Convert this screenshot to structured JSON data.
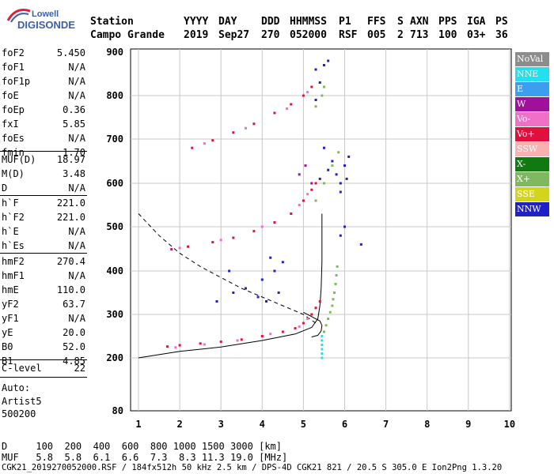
{
  "logo": {
    "line1": "Lowell",
    "line2": "DIGISONDE"
  },
  "header": {
    "row1": [
      "Station",
      "YYYY",
      "DAY",
      "DDD",
      "HHMMSS",
      "P1",
      "FFS",
      "S",
      "AXN",
      "PPS",
      "IGA",
      "PS"
    ],
    "row2": [
      "Campo Grande",
      "2019",
      "Sep27",
      "270",
      "052000",
      "RSF",
      "005",
      "2",
      "713",
      "100",
      "03+",
      "36"
    ]
  },
  "params": {
    "group1": [
      {
        "name": "foF2",
        "value": "5.450"
      },
      {
        "name": "foF1",
        "value": "N/A"
      },
      {
        "name": "foF1p",
        "value": "N/A"
      },
      {
        "name": "foE",
        "value": "N/A"
      },
      {
        "name": "foEp",
        "value": "0.36"
      },
      {
        "name": "fxI",
        "value": "5.85"
      },
      {
        "name": "foEs",
        "value": "N/A"
      },
      {
        "name": "fmin",
        "value": "1.70"
      }
    ],
    "group2": [
      {
        "name": "MUF(D)",
        "value": "18.97"
      },
      {
        "name": "M(D)",
        "value": "3.48"
      },
      {
        "name": "D",
        "value": "N/A"
      }
    ],
    "group3": [
      {
        "name": "h`F",
        "value": "221.0"
      },
      {
        "name": "h`F2",
        "value": "221.0"
      },
      {
        "name": "h`E",
        "value": "N/A"
      },
      {
        "name": "h`Es",
        "value": "N/A"
      }
    ],
    "group4": [
      {
        "name": "hmF2",
        "value": "270.4"
      },
      {
        "name": "hmF1",
        "value": "N/A"
      },
      {
        "name": "hmE",
        "value": "110.0"
      },
      {
        "name": "yF2",
        "value": "63.7"
      },
      {
        "name": "yF1",
        "value": "N/A"
      },
      {
        "name": "yE",
        "value": "20.0"
      },
      {
        "name": "B0",
        "value": "52.0"
      },
      {
        "name": "B1",
        "value": "4.85"
      }
    ],
    "group5": [
      {
        "name": "C-level",
        "value": "22"
      }
    ]
  },
  "auto": {
    "line1": "Auto:",
    "line2": "Artist5",
    "line3": "500200"
  },
  "legend": [
    {
      "label": "NoVal",
      "color": "#8c8c8c"
    },
    {
      "label": "NNE",
      "color": "#22e0f0"
    },
    {
      "label": "E",
      "color": "#3d9ef0"
    },
    {
      "label": "W",
      "color": "#a0109a"
    },
    {
      "label": "Vo-",
      "color": "#f070c8"
    },
    {
      "label": "Vo+",
      "color": "#e0103c"
    },
    {
      "label": "SSW",
      "color": "#f8b0b0"
    },
    {
      "label": "X-",
      "color": "#107a10"
    },
    {
      "label": "X+",
      "color": "#80b860"
    },
    {
      "label": "SSE",
      "color": "#d4d41a"
    },
    {
      "label": "NNW",
      "color": "#2020c8"
    }
  ],
  "bottom": {
    "d_row": "D     100  200  400  600  800 1000 1500 3000 [km]",
    "muf_row": "MUF   5.8  5.8  6.1  6.6  7.3  8.3 11.3 19.0 [MHz]",
    "footer": "CGK21_2019270052000.RSF / 184fx512h 50 kHz 2.5 km / DPS-4D CGK21 821 / 20.5 S 305.0 E Ion2Png 1.3.20"
  },
  "chart_data": {
    "type": "scatter",
    "xlim": [
      1,
      10
    ],
    "ylim": [
      80,
      900
    ],
    "xticks": [
      "1",
      "2",
      "3",
      "4",
      "5",
      "6",
      "7",
      "8",
      "9",
      "10"
    ],
    "yticks": [
      "80",
      "200",
      "300",
      "400",
      "500",
      "600",
      "700",
      "800",
      "900"
    ],
    "grid": true,
    "legend_position": "right",
    "series": [
      {
        "name": "Vo+",
        "color": "#e0103c",
        "points": [
          [
            1.7,
            226
          ],
          [
            2.0,
            229
          ],
          [
            2.5,
            233
          ],
          [
            3.0,
            237
          ],
          [
            3.5,
            242
          ],
          [
            4.0,
            250
          ],
          [
            4.5,
            260
          ],
          [
            4.8,
            268
          ],
          [
            5.0,
            280
          ],
          [
            5.2,
            300
          ],
          [
            5.3,
            315
          ],
          [
            5.4,
            330
          ],
          [
            1.8,
            449
          ],
          [
            2.2,
            455
          ],
          [
            2.8,
            465
          ],
          [
            3.3,
            475
          ],
          [
            3.8,
            490
          ],
          [
            4.3,
            510
          ],
          [
            4.7,
            530
          ],
          [
            5.0,
            560
          ],
          [
            5.2,
            585
          ],
          [
            5.3,
            600
          ],
          [
            2.3,
            680
          ],
          [
            2.8,
            697
          ],
          [
            3.3,
            715
          ],
          [
            3.8,
            735
          ],
          [
            4.3,
            760
          ],
          [
            4.7,
            780
          ],
          [
            5.0,
            800
          ],
          [
            5.2,
            820
          ]
        ]
      },
      {
        "name": "Vo-",
        "color": "#f070c8",
        "points": [
          [
            1.9,
            224
          ],
          [
            2.6,
            231
          ],
          [
            3.4,
            240
          ],
          [
            4.2,
            255
          ],
          [
            4.9,
            272
          ],
          [
            5.1,
            290
          ],
          [
            2.0,
            452
          ],
          [
            3.0,
            470
          ],
          [
            4.0,
            500
          ],
          [
            4.9,
            550
          ],
          [
            5.1,
            575
          ],
          [
            2.6,
            690
          ],
          [
            3.6,
            725
          ],
          [
            4.6,
            770
          ],
          [
            5.1,
            808
          ]
        ]
      },
      {
        "name": "X+",
        "color": "#80b860",
        "points": [
          [
            5.5,
            260
          ],
          [
            5.55,
            275
          ],
          [
            5.6,
            290
          ],
          [
            5.65,
            305
          ],
          [
            5.7,
            320
          ],
          [
            5.72,
            335
          ],
          [
            5.75,
            350
          ],
          [
            5.78,
            370
          ],
          [
            5.8,
            390
          ],
          [
            5.82,
            410
          ],
          [
            5.3,
            560
          ],
          [
            5.5,
            600
          ],
          [
            5.7,
            640
          ],
          [
            5.85,
            670
          ],
          [
            5.3,
            775
          ],
          [
            5.45,
            800
          ],
          [
            5.5,
            820
          ]
        ]
      },
      {
        "name": "NNW",
        "color": "#2020c8",
        "points": [
          [
            5.4,
            610
          ],
          [
            5.6,
            630
          ],
          [
            5.7,
            650
          ],
          [
            5.8,
            620
          ],
          [
            5.9,
            600
          ],
          [
            6.0,
            640
          ],
          [
            6.1,
            660
          ],
          [
            5.5,
            680
          ],
          [
            5.9,
            580
          ],
          [
            6.05,
            610
          ],
          [
            5.3,
            790
          ],
          [
            5.4,
            830
          ],
          [
            5.3,
            860
          ],
          [
            5.5,
            870
          ],
          [
            5.6,
            880
          ],
          [
            3.2,
            400
          ],
          [
            3.6,
            360
          ],
          [
            4.0,
            380
          ],
          [
            4.3,
            400
          ],
          [
            4.4,
            350
          ],
          [
            4.1,
            330
          ],
          [
            3.9,
            340
          ],
          [
            2.9,
            330
          ],
          [
            3.3,
            350
          ],
          [
            4.5,
            420
          ],
          [
            6.0,
            500
          ],
          [
            6.4,
            460
          ],
          [
            5.9,
            480
          ],
          [
            4.2,
            430
          ]
        ]
      },
      {
        "name": "NNE",
        "color": "#22e0f0",
        "points": [
          [
            5.45,
            200
          ],
          [
            5.45,
            210
          ],
          [
            5.45,
            220
          ],
          [
            5.45,
            230
          ],
          [
            5.45,
            240
          ],
          [
            5.45,
            250
          ]
        ]
      },
      {
        "name": "W",
        "color": "#a0109a",
        "points": [
          [
            4.9,
            620
          ],
          [
            5.05,
            640
          ],
          [
            5.2,
            600
          ]
        ]
      }
    ],
    "curves": [
      {
        "name": "profile",
        "style": "solid",
        "points": [
          [
            1.0,
            200
          ],
          [
            2.0,
            215
          ],
          [
            3.0,
            225
          ],
          [
            4.0,
            240
          ],
          [
            4.8,
            255
          ],
          [
            5.2,
            270
          ],
          [
            5.35,
            290
          ],
          [
            5.4,
            320
          ],
          [
            5.43,
            360
          ],
          [
            5.45,
            420
          ],
          [
            5.45,
            480
          ],
          [
            5.45,
            530
          ]
        ]
      },
      {
        "name": "model-x",
        "style": "solid",
        "points": [
          [
            5.2,
            248
          ],
          [
            5.35,
            252
          ],
          [
            5.43,
            262
          ],
          [
            5.45,
            275
          ],
          [
            5.4,
            285
          ],
          [
            5.2,
            295
          ],
          [
            5.0,
            305
          ]
        ]
      },
      {
        "name": "model-dashed",
        "style": "dashed",
        "points": [
          [
            1.0,
            530
          ],
          [
            1.5,
            480
          ],
          [
            2.0,
            440
          ],
          [
            2.5,
            410
          ],
          [
            3.0,
            385
          ],
          [
            3.5,
            360
          ],
          [
            4.0,
            340
          ],
          [
            4.5,
            320
          ],
          [
            5.0,
            300
          ],
          [
            5.3,
            280
          ]
        ]
      }
    ]
  }
}
